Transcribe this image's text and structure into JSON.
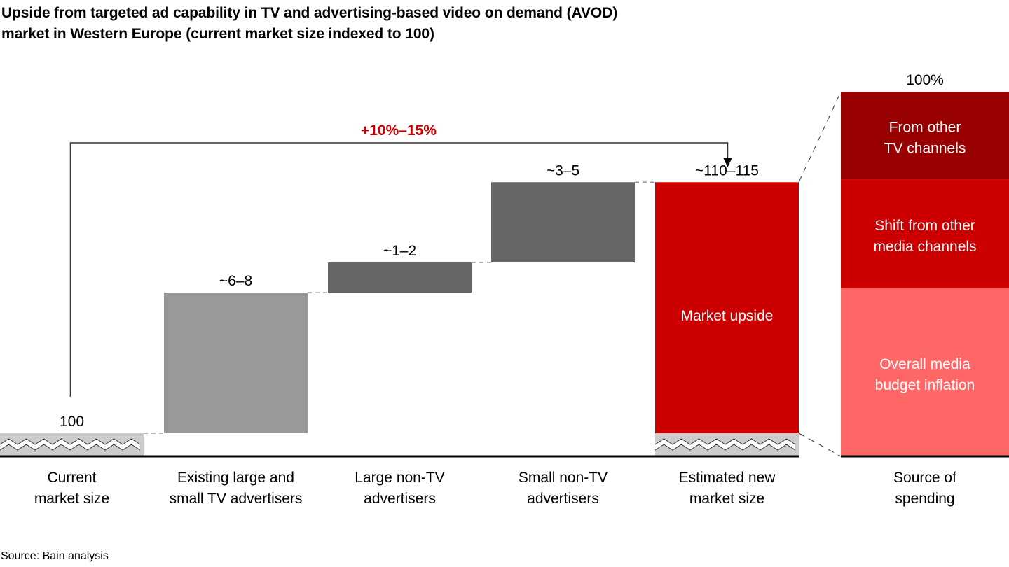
{
  "title_lines": [
    "Upside from targeted ad capability in TV and advertising-based video on demand (AVOD)",
    "market in Western Europe (current market size indexed to 100)"
  ],
  "source": "Source: Bain analysis",
  "colors": {
    "base": "#cccccc",
    "light_gray": "#999999",
    "dark_gray": "#666666",
    "red": "#cc0000",
    "dark_red": "#990000",
    "light_red": "#ff6666",
    "highlight_text": "#cc0000"
  },
  "chart_data": [
    {
      "type": "waterfall",
      "title": "Upside from targeted ad capability in TV and AVOD market in Western Europe (current market size indexed to 100)",
      "axis_break": true,
      "categories": [
        [
          "Current",
          "market size"
        ],
        [
          "Existing large and",
          "small TV advertisers"
        ],
        [
          "Large non-TV",
          "advertisers"
        ],
        [
          "Small non-TV",
          "advertisers"
        ],
        [
          "Estimated new",
          "market size"
        ]
      ],
      "bars": [
        {
          "kind": "total",
          "low": 100,
          "high": 100,
          "value": 100,
          "label": "100"
        },
        {
          "kind": "increment",
          "low": 6,
          "high": 8,
          "value": 7,
          "label": "~6–8"
        },
        {
          "kind": "increment",
          "low": 1,
          "high": 2,
          "value": 1.5,
          "label": "~1–2"
        },
        {
          "kind": "increment",
          "low": 3,
          "high": 5,
          "value": 4,
          "label": "~3–5"
        },
        {
          "kind": "total",
          "low": 110,
          "high": 115,
          "value": 112.5,
          "label": "~110–115",
          "inner_label": "Market upside"
        }
      ],
      "growth_annotation": "+10%–15%"
    },
    {
      "type": "stacked_bar",
      "category": [
        "Source of",
        "spending"
      ],
      "total_label": "100%",
      "segments": [
        {
          "label": [
            "From other",
            "TV channels"
          ],
          "share": 24
        },
        {
          "label": [
            "Shift from other",
            "media channels"
          ],
          "share": 30
        },
        {
          "label": [
            "Overall media",
            "budget inflation"
          ],
          "share": 46
        }
      ]
    }
  ]
}
